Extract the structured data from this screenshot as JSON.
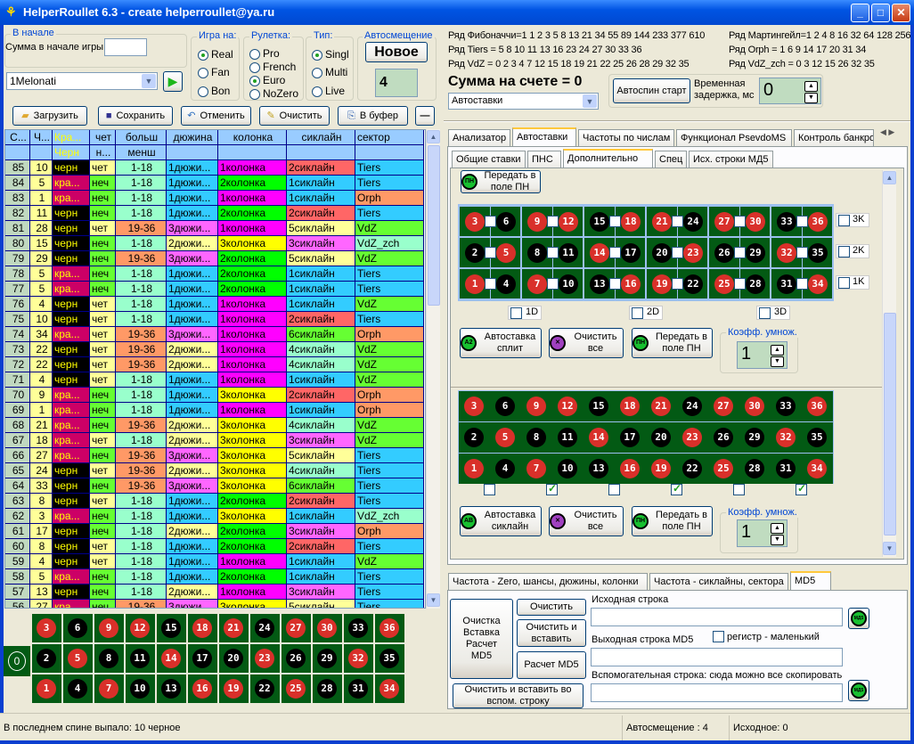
{
  "window": {
    "title": "HelperRoullet 6.3 - create helperroullet@ya.ru",
    "minimize": "_",
    "maximize": "□",
    "close": "✕"
  },
  "start_group": {
    "title": "В начале",
    "sum_label": "Сумма в начале игры",
    "sum_value": ""
  },
  "profile_select": {
    "value": "1Melonati"
  },
  "game_on": {
    "title": "Игра на:",
    "options": [
      "Real",
      "Fan",
      "Bon"
    ],
    "selected": "Real"
  },
  "roulette": {
    "title": "Рулетка:",
    "options": [
      "Pro",
      "French",
      "Euro",
      "NoZero"
    ],
    "selected": "Euro"
  },
  "type": {
    "title": "Тип:",
    "options": [
      "Singl",
      "Multi",
      "Live"
    ],
    "selected": "Singl"
  },
  "autoshift": {
    "title": "Автосмещение",
    "new_button": "Новое",
    "value": "4"
  },
  "toolbar": {
    "load": "Загрузить",
    "save": "Сохранить",
    "undo": "Отменить",
    "clear": "Очистить",
    "copy": "В буфер",
    "minus": "—"
  },
  "table": {
    "headers1": [
      "С...",
      "Ч...",
      "Кра...",
      "чет",
      "больш",
      "дюжина",
      "колонка",
      "сиклайн",
      "сектор"
    ],
    "headers2": [
      "",
      "",
      "Черн",
      "н...",
      "менш",
      "",
      "",
      "",
      ""
    ],
    "rows": [
      [
        "85",
        "10",
        "черн",
        "чет",
        "1-18",
        "1дюжи...",
        "1колонка",
        "2сиклайн",
        "Tiers"
      ],
      [
        "84",
        "5",
        "кра...",
        "неч",
        "1-18",
        "1дюжи...",
        "2колонка",
        "1сиклайн",
        "Tiers"
      ],
      [
        "83",
        "1",
        "кра...",
        "неч",
        "1-18",
        "1дюжи...",
        "1колонка",
        "1сиклайн",
        "Orph"
      ],
      [
        "82",
        "11",
        "черн",
        "неч",
        "1-18",
        "1дюжи...",
        "2колонка",
        "2сиклайн",
        "Tiers"
      ],
      [
        "81",
        "28",
        "черн",
        "чет",
        "19-36",
        "3дюжи...",
        "1колонка",
        "5сиклайн",
        "VdZ"
      ],
      [
        "80",
        "15",
        "черн",
        "неч",
        "1-18",
        "2дюжи...",
        "3колонка",
        "3сиклайн",
        "VdZ_zch"
      ],
      [
        "79",
        "29",
        "черн",
        "неч",
        "19-36",
        "3дюжи...",
        "2колонка",
        "5сиклайн",
        "VdZ"
      ],
      [
        "78",
        "5",
        "кра...",
        "неч",
        "1-18",
        "1дюжи...",
        "2колонка",
        "1сиклайн",
        "Tiers"
      ],
      [
        "77",
        "5",
        "кра...",
        "неч",
        "1-18",
        "1дюжи...",
        "2колонка",
        "1сиклайн",
        "Tiers"
      ],
      [
        "76",
        "4",
        "черн",
        "чет",
        "1-18",
        "1дюжи...",
        "1колонка",
        "1сиклайн",
        "VdZ"
      ],
      [
        "75",
        "10",
        "черн",
        "чет",
        "1-18",
        "1дюжи...",
        "1колонка",
        "2сиклайн",
        "Tiers"
      ],
      [
        "74",
        "34",
        "кра...",
        "чет",
        "19-36",
        "3дюжи...",
        "1колонка",
        "6сиклайн",
        "Orph"
      ],
      [
        "73",
        "22",
        "черн",
        "чет",
        "19-36",
        "2дюжи...",
        "1колонка",
        "4сиклайн",
        "VdZ"
      ],
      [
        "72",
        "22",
        "черн",
        "чет",
        "19-36",
        "2дюжи...",
        "1колонка",
        "4сиклайн",
        "VdZ"
      ],
      [
        "71",
        "4",
        "черн",
        "чет",
        "1-18",
        "1дюжи...",
        "1колонка",
        "1сиклайн",
        "VdZ"
      ],
      [
        "70",
        "9",
        "кра...",
        "неч",
        "1-18",
        "1дюжи...",
        "3колонка",
        "2сиклайн",
        "Orph"
      ],
      [
        "69",
        "1",
        "кра...",
        "неч",
        "1-18",
        "1дюжи...",
        "1колонка",
        "1сиклайн",
        "Orph"
      ],
      [
        "68",
        "21",
        "кра...",
        "неч",
        "19-36",
        "2дюжи...",
        "3колонка",
        "4сиклайн",
        "VdZ"
      ],
      [
        "67",
        "18",
        "кра...",
        "чет",
        "1-18",
        "2дюжи...",
        "3колонка",
        "3сиклайн",
        "VdZ"
      ],
      [
        "66",
        "27",
        "кра...",
        "неч",
        "19-36",
        "3дюжи...",
        "3колонка",
        "5сиклайн",
        "Tiers"
      ],
      [
        "65",
        "24",
        "черн",
        "чет",
        "19-36",
        "2дюжи...",
        "3колонка",
        "4сиклайн",
        "Tiers"
      ],
      [
        "64",
        "33",
        "черн",
        "неч",
        "19-36",
        "3дюжи...",
        "3колонка",
        "6сиклайн",
        "Tiers"
      ],
      [
        "63",
        "8",
        "черн",
        "чет",
        "1-18",
        "1дюжи...",
        "2колонка",
        "2сиклайн",
        "Tiers"
      ],
      [
        "62",
        "3",
        "кра...",
        "неч",
        "1-18",
        "1дюжи...",
        "3колонка",
        "1сиклайн",
        "VdZ_zch"
      ],
      [
        "61",
        "17",
        "черн",
        "неч",
        "1-18",
        "2дюжи...",
        "2колонка",
        "3сиклайн",
        "Orph"
      ],
      [
        "60",
        "8",
        "черн",
        "чет",
        "1-18",
        "1дюжи...",
        "2колонка",
        "2сиклайн",
        "Tiers"
      ],
      [
        "59",
        "4",
        "черн",
        "чет",
        "1-18",
        "1дюжи...",
        "1колонка",
        "1сиклайн",
        "VdZ"
      ],
      [
        "58",
        "5",
        "кра...",
        "неч",
        "1-18",
        "1дюжи...",
        "2колонка",
        "1сиклайн",
        "Tiers"
      ],
      [
        "57",
        "13",
        "черн",
        "неч",
        "1-18",
        "2дюжи...",
        "1колонка",
        "3сиклайн",
        "Tiers"
      ],
      [
        "56",
        "27",
        "кра...",
        "неч",
        "19-36",
        "3дюжи...",
        "3колонка",
        "5сиклайн",
        "Tiers"
      ]
    ]
  },
  "colors": {
    "red_numbers": [
      1,
      3,
      5,
      7,
      9,
      12,
      14,
      16,
      18,
      19,
      21,
      23,
      25,
      27,
      30,
      32,
      34,
      36
    ],
    "cells": {
      "черн": "#000000",
      "кра...": "#cc0066",
      "чет": "#ffff99",
      "неч": "#66ff33",
      "1-18": "#99ffcc",
      "19-36": "#ff9966",
      "1дюжи...": "#33ccff",
      "2дюжи...": "#ffff99",
      "3дюжи...": "#ff66ff",
      "1колонка": "#ff00ff",
      "2колонка": "#00ff00",
      "3колонка": "#ffff00",
      "1сиклайн": "#33ccff",
      "2сиклайн": "#ff6666",
      "3сиклайн": "#ff66ff",
      "4сиклайн": "#99ffcc",
      "5сиклайн": "#ffff99",
      "6сиклайн": "#66ff33",
      "Tiers": "#33ccff",
      "Orph": "#ff9966",
      "VdZ": "#66ff33",
      "VdZ_zch": "#99ffcc"
    }
  },
  "board_rows": [
    [
      3,
      6,
      9,
      12,
      15,
      18,
      21,
      24,
      27,
      30,
      33,
      36
    ],
    [
      2,
      5,
      8,
      11,
      14,
      17,
      20,
      23,
      26,
      29,
      32,
      35
    ],
    [
      1,
      4,
      7,
      10,
      13,
      16,
      19,
      22,
      25,
      28,
      31,
      34
    ]
  ],
  "zero": "0",
  "series": {
    "fibonacci": "Ряд Фибоначчи=1 1 2 3 5 8 13 21 34 55 89 144 233 377 610",
    "martingale": "Ряд Мартингейл=1 2 4 8 16 32 64 128 256",
    "tiers": "Ряд Tiers = 5 8 10 11 13 16 23 24 27 30 33 36",
    "orph": "Ряд Orph = 1 6 9 14 17 20 31 34",
    "vdz": "Ряд VdZ = 0 2 3 4 7 12 15 18 19 21 22 25 26 28 29 32 35",
    "vdz_zch": "Ряд VdZ_zch = 0 3 12 15 26 32 35"
  },
  "balance": "Сумма на счете = 0",
  "mode_select": {
    "value": "Автоставки"
  },
  "autospin": {
    "button": "Автоспин старт",
    "delay_label": "Временная задержка, мс",
    "delay_value": "0"
  },
  "main_tabs": [
    "Анализатор",
    "Автоставки",
    "Частоты по числам",
    "Функционал PsevdoMS",
    "Контроль банкрол"
  ],
  "main_tab_active": "Автоставки",
  "sub_tabs": [
    "Общие ставки",
    "ПНС",
    "Дополнительно",
    "Спец",
    "Исх. строки МД5"
  ],
  "sub_tab_active": "Дополнительно",
  "extra": {
    "transfer_top": "Передать в поле ПН",
    "row_checks": [
      "3K",
      "2K",
      "1K"
    ],
    "dozen_checks": [
      "1D",
      "2D",
      "3D"
    ],
    "split_button": "Автоставка сплит",
    "clear_all": "Очистить все",
    "transfer": "Передать в поле ПН",
    "coef_label": "Коэфф. умнож.",
    "coef_value": "1",
    "coef_value2": "1",
    "sixline_button": "Автоставка сиклайн",
    "clear_all2": "Очистить все",
    "transfer2": "Передать в поле ПН",
    "sixline_checks": [
      false,
      true,
      false,
      true,
      false,
      true
    ]
  },
  "bottom_tabs": [
    "Частота - Zero, шансы, дюжины, колонки",
    "Частота - сиклайны, сектора",
    "MD5"
  ],
  "bottom_tab_active": "MD5",
  "md5": {
    "big_button": "Очистка Вставка Расчет MD5",
    "clear": "Очистить",
    "clear_paste": "Очистить и вставить",
    "calc": "Расчет MD5",
    "clear_paste_aux": "Очистить и  вставить во вспом. строку",
    "source_label": "Исходная строка",
    "source_value": "",
    "output_label": "Выходная строка MD5",
    "output_value": "",
    "lowercase_label": "регистр  - маленький",
    "aux_label": "Вспомогательная строка: сюда можно все скопировать",
    "aux_value": "",
    "md5_icon": "МД5"
  },
  "status": {
    "last_spin": "В последнем спине выпало: 10 черное",
    "autoshift": "Автосмещение : 4",
    "source": "Исходное: 0"
  }
}
